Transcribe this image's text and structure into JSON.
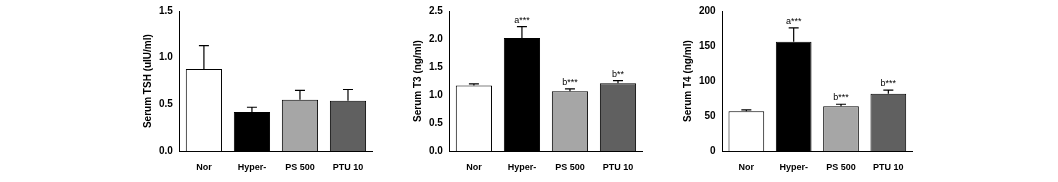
{
  "chart_data": [
    {
      "type": "bar",
      "y_label": "Serum TSH (uIU/ml)",
      "categories": [
        "Nor",
        "Hyper-",
        "PS 500",
        "PTU 10"
      ],
      "values": [
        0.88,
        0.42,
        0.55,
        0.54
      ],
      "errors": [
        0.25,
        0.05,
        0.1,
        0.12
      ],
      "colors": [
        "#ffffff",
        "#000000",
        "#a6a6a6",
        "#606060"
      ],
      "annotations": [
        null,
        null,
        null,
        null
      ],
      "ylim": [
        0,
        1.5
      ],
      "yticks": [
        {
          "value": 0,
          "label": "0.0"
        },
        {
          "value": 0.5,
          "label": "0.5"
        },
        {
          "value": 1,
          "label": "1.0"
        },
        {
          "value": 1.5,
          "label": "1.5"
        }
      ],
      "grid": false
    },
    {
      "type": "bar",
      "y_label": "Serum T3 (ng/ml)",
      "categories": [
        "Nor",
        "Hyper-",
        "PS 500",
        "PTU 10"
      ],
      "values": [
        1.17,
        2.02,
        1.07,
        1.21
      ],
      "errors": [
        0.03,
        0.2,
        0.04,
        0.05
      ],
      "colors": [
        "#ffffff",
        "#000000",
        "#a6a6a6",
        "#606060"
      ],
      "annotations": [
        null,
        "a***",
        "b***",
        "b**"
      ],
      "ylim": [
        0,
        2.5
      ],
      "yticks": [
        {
          "value": 0,
          "label": "0.0"
        },
        {
          "value": 0.5,
          "label": "0.5"
        },
        {
          "value": 1,
          "label": "1.0"
        },
        {
          "value": 1.5,
          "label": "1.5"
        },
        {
          "value": 2,
          "label": "2.0"
        },
        {
          "value": 2.5,
          "label": "2.5"
        }
      ],
      "grid": false
    },
    {
      "type": "bar",
      "y_label": "Serum T4 (ng/ml)",
      "categories": [
        "Nor",
        "Hyper-",
        "PS 500",
        "PTU 10"
      ],
      "values": [
        57,
        156,
        64,
        82
      ],
      "errors": [
        2,
        20,
        3,
        5
      ],
      "colors": [
        "#ffffff",
        "#000000",
        "#a6a6a6",
        "#606060"
      ],
      "annotations": [
        null,
        "a***",
        "b***",
        "b***"
      ],
      "ylim": [
        0,
        200
      ],
      "yticks": [
        0,
        50,
        100,
        150,
        200
      ],
      "grid": false
    }
  ]
}
